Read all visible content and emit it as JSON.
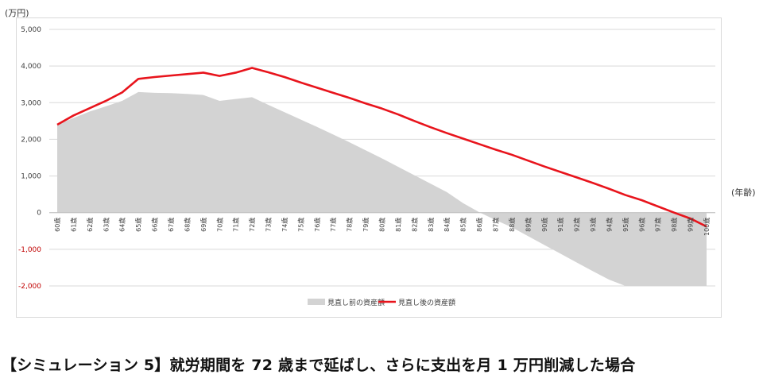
{
  "y_unit": "(万円)",
  "x_unit": "(年齢)",
  "caption": "【シミュレーション 5】就労期間を 72 歳まで延ばし、さらに支出を月 1 万円削減した場合",
  "colors": {
    "before": "#d3d3d3",
    "after": "#e8141c",
    "grid": "#d9d9d9",
    "negative_tick": "#c00000"
  },
  "chart_data": {
    "type": "area",
    "ylim": [
      -2000,
      5000
    ],
    "yticks": [
      5000,
      4000,
      3000,
      2000,
      1000,
      0,
      -1000,
      -2000
    ],
    "ytick_labels": [
      "5,000",
      "4,000",
      "3,000",
      "2,000",
      "1,000",
      "0",
      "-1,000",
      "-2,000"
    ],
    "grid": true,
    "legend_position": "bottom",
    "categories": [
      "60歳",
      "61歳",
      "62歳",
      "63歳",
      "64歳",
      "65歳",
      "66歳",
      "67歳",
      "68歳",
      "69歳",
      "70歳",
      "71歳",
      "72歳",
      "73歳",
      "74歳",
      "75歳",
      "76歳",
      "77歳",
      "78歳",
      "79歳",
      "80歳",
      "81歳",
      "82歳",
      "83歳",
      "84歳",
      "85歳",
      "86歳",
      "87歳",
      "88歳",
      "89歳",
      "90歳",
      "91歳",
      "92歳",
      "93歳",
      "94歳",
      "95歳",
      "96歳",
      "97歳",
      "98歳",
      "99歳",
      "100歳"
    ],
    "series": [
      {
        "name": "見直し前の資産額",
        "kind": "area",
        "values": [
          2400,
          2580,
          2760,
          2900,
          3050,
          3290,
          3270,
          3260,
          3240,
          3210,
          3050,
          3100,
          3150,
          2940,
          2740,
          2540,
          2340,
          2130,
          1920,
          1700,
          1480,
          1250,
          1020,
          790,
          560,
          260,
          10,
          -200,
          -400,
          -640,
          -880,
          -1120,
          -1360,
          -1600,
          -1830,
          -2000,
          -2000,
          -2000,
          -2000,
          -2000,
          -2000
        ]
      },
      {
        "name": "見直し後の資産額",
        "kind": "line",
        "values": [
          2400,
          2650,
          2850,
          3050,
          3280,
          3650,
          3700,
          3740,
          3780,
          3820,
          3730,
          3820,
          3950,
          3830,
          3700,
          3550,
          3410,
          3270,
          3130,
          2980,
          2840,
          2680,
          2500,
          2330,
          2170,
          2020,
          1870,
          1720,
          1580,
          1420,
          1260,
          1110,
          960,
          810,
          650,
          480,
          340,
          170,
          0,
          -160,
          -380
        ]
      }
    ]
  }
}
